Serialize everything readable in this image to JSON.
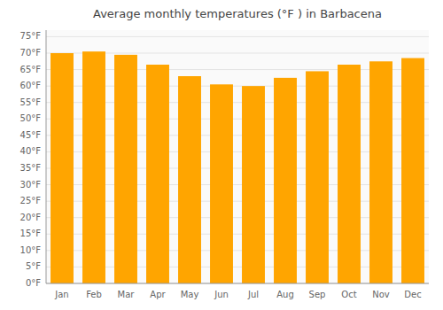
{
  "chart_data": {
    "type": "bar",
    "title": "Average monthly temperatures (°F ) in Barbacena",
    "categories": [
      "Jan",
      "Feb",
      "Mar",
      "Apr",
      "May",
      "Jun",
      "Jul",
      "Aug",
      "Sep",
      "Oct",
      "Nov",
      "Dec"
    ],
    "values": [
      70.0,
      70.5,
      69.5,
      66.5,
      63.0,
      60.5,
      60.0,
      62.5,
      64.5,
      66.5,
      67.5,
      68.5
    ],
    "color": "#FFA500",
    "ylim": [
      0,
      77
    ],
    "yticks": [
      {
        "value": 0,
        "label": "0°F"
      },
      {
        "value": 5,
        "label": "5°F"
      },
      {
        "value": 10,
        "label": "10°F"
      },
      {
        "value": 15,
        "label": "15°F"
      },
      {
        "value": 20,
        "label": "20°F"
      },
      {
        "value": 25,
        "label": "25°F"
      },
      {
        "value": 30,
        "label": "30°F"
      },
      {
        "value": 35,
        "label": "35°F"
      },
      {
        "value": 40,
        "label": "40°F"
      },
      {
        "value": 45,
        "label": "45°F"
      },
      {
        "value": 50,
        "label": "50°F"
      },
      {
        "value": 55,
        "label": "55°F"
      },
      {
        "value": 60,
        "label": "60°F"
      },
      {
        "value": 65,
        "label": "65°F"
      },
      {
        "value": 70,
        "label": "70°F"
      },
      {
        "value": 75,
        "label": "75°F"
      }
    ],
    "grid": true
  }
}
